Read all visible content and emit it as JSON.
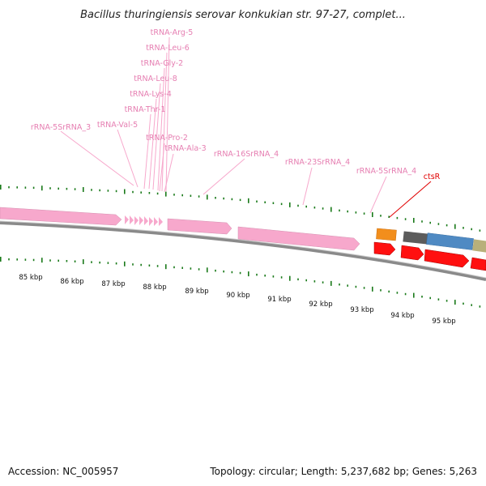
{
  "title": "Bacillus thuringiensis serovar konkukian str. 97-27, complet...",
  "footer": {
    "accession": "Accession: NC_005957",
    "summary": "Topology: circular; Length: 5,237,682 bp; Genes: 5,263"
  },
  "colors": {
    "rna": "#f7a8cc",
    "rna_label": "#e67fb2",
    "selected": "#e00000",
    "tick": "#1a7a1a",
    "backbone": "#8a8a8a",
    "orange": "#f28e1c",
    "dark_grey": "#5c5c5c",
    "blue": "#4f8ac3",
    "khaki": "#b8b07a",
    "red_feature": "#ff1010"
  },
  "position_labels": [
    "85 kbp",
    "86 kbp",
    "87 kbp",
    "88 kbp",
    "89 kbp",
    "90 kbp",
    "91 kbp",
    "92 kbp",
    "93 kbp",
    "94 kbp",
    "95 kbp"
  ],
  "gene_labels": [
    {
      "text": "tRNA-Arg-5",
      "type": "rna"
    },
    {
      "text": "tRNA-Leu-6",
      "type": "rna"
    },
    {
      "text": "tRNA-Gly-2",
      "type": "rna"
    },
    {
      "text": "tRNA-Leu-8",
      "type": "rna"
    },
    {
      "text": "tRNA-Lys-4",
      "type": "rna"
    },
    {
      "text": "tRNA-Thr-1",
      "type": "rna"
    },
    {
      "text": "rRNA-5SrRNA_3",
      "type": "rna"
    },
    {
      "text": "tRNA-Val-5",
      "type": "rna"
    },
    {
      "text": "tRNA-Pro-2",
      "type": "rna"
    },
    {
      "text": "tRNA-Ala-3",
      "type": "rna"
    },
    {
      "text": "rRNA-16SrRNA_4",
      "type": "rna"
    },
    {
      "text": "rRNA-23SrRNA_4",
      "type": "rna"
    },
    {
      "text": "rRNA-5SrRNA_4",
      "type": "rna"
    },
    {
      "text": "ctsR",
      "type": "selected"
    }
  ]
}
